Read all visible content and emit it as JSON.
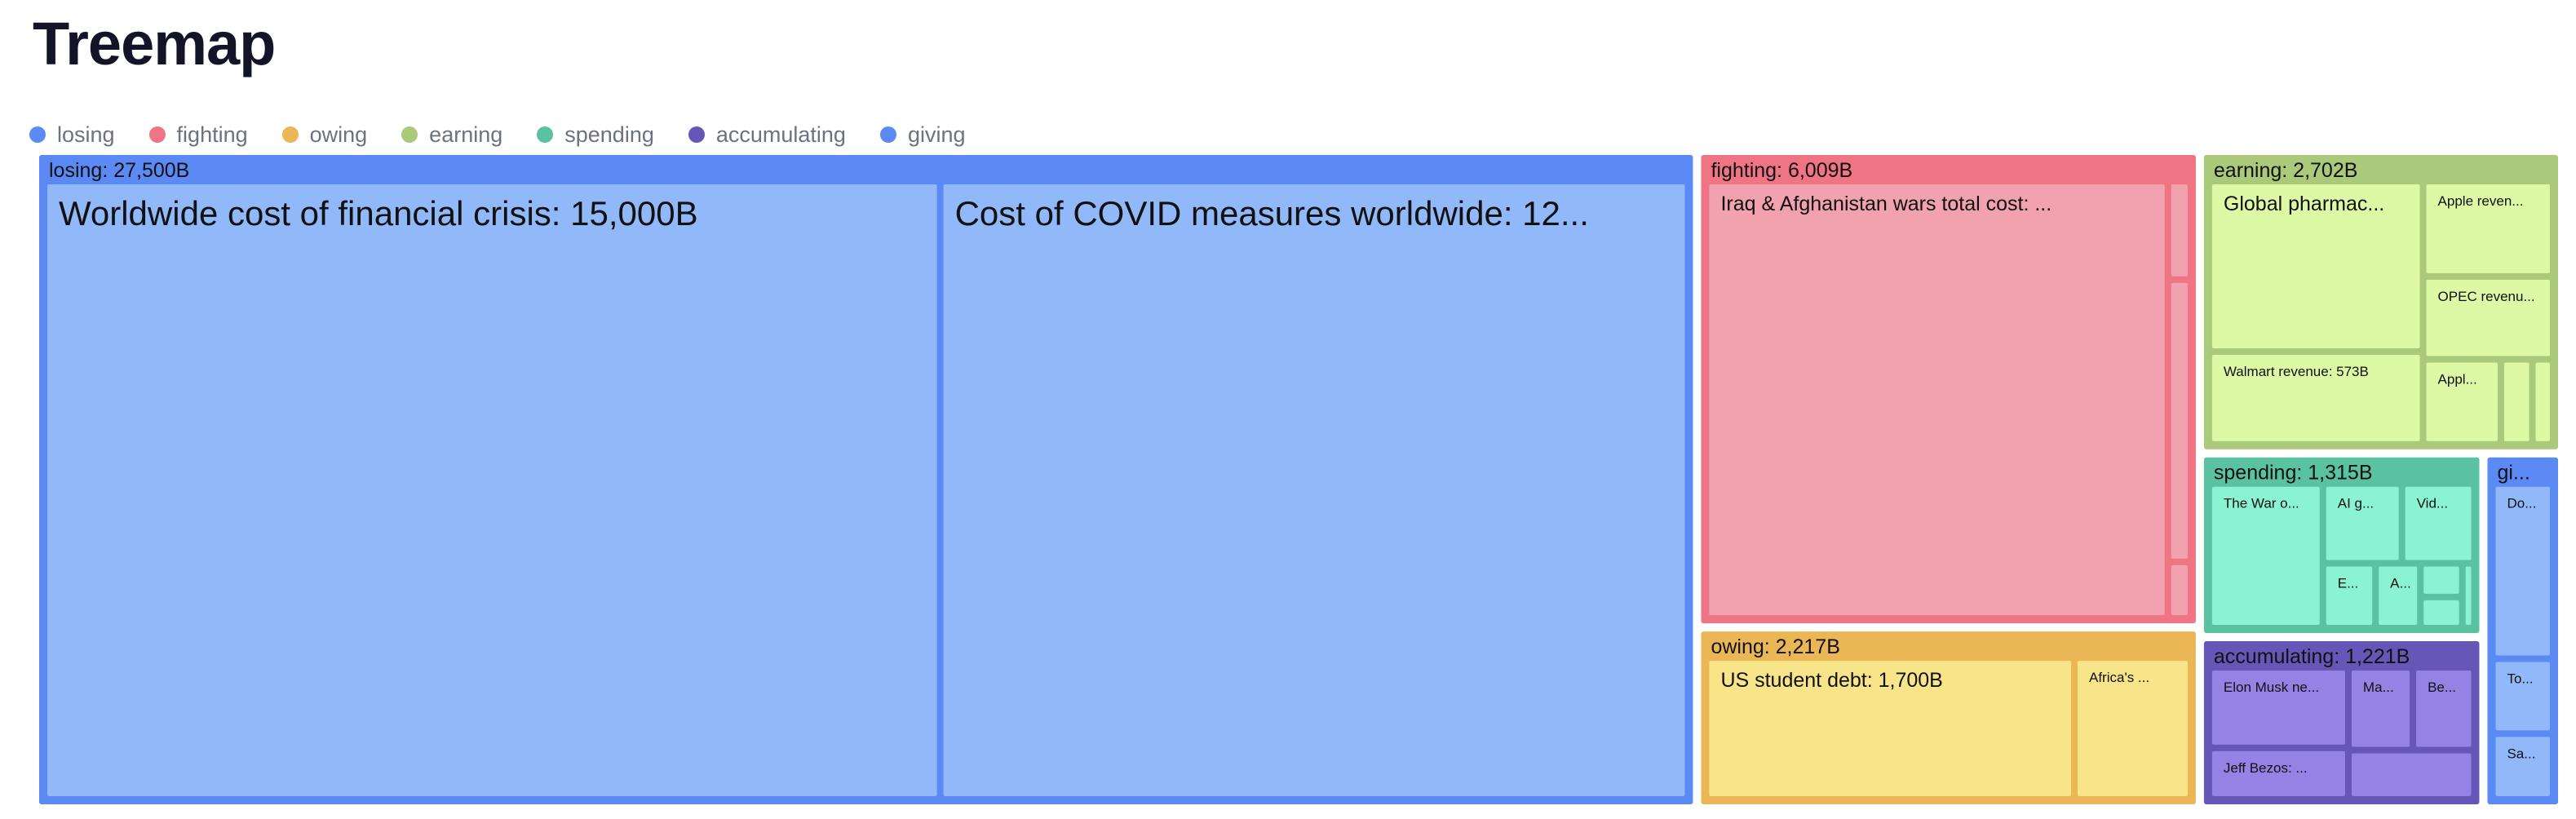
{
  "page": {
    "title": "Treemap"
  },
  "legend": [
    {
      "label": "losing",
      "color": "#5b8af5"
    },
    {
      "label": "fighting",
      "color": "#ef7585"
    },
    {
      "label": "owing",
      "color": "#ebb756"
    },
    {
      "label": "earning",
      "color": "#aac97a"
    },
    {
      "label": "spending",
      "color": "#5ac2a0"
    },
    {
      "label": "accumulating",
      "color": "#6656b8"
    },
    {
      "label": "giving",
      "color": "#5b8af5"
    }
  ],
  "chart_data": {
    "type": "treemap",
    "unit": "B",
    "groups": [
      {
        "name": "losing",
        "header": "losing: 27,500B",
        "value": 27500,
        "color": "#5b8af5",
        "leafColor": "#91b8f8",
        "children": [
          {
            "label": "Worldwide cost of financial crisis: 15,000B",
            "value": 15000
          },
          {
            "label": "Cost of COVID measures worldwide: 12,...",
            "value": 12500
          }
        ]
      },
      {
        "name": "fighting",
        "header": "fighting: 6,009B",
        "value": 6009,
        "color": "#ef7585",
        "leafColor": "#f2a2ae",
        "children": [
          {
            "label": "Iraq & Afghanistan wars total cost: 5,800B",
            "value": 5800
          },
          {
            "label": "",
            "value": 46
          },
          {
            "label": "",
            "value": 138
          },
          {
            "label": "",
            "value": 25
          }
        ]
      },
      {
        "name": "owing",
        "header": "owing: 2,217B",
        "value": 2217,
        "color": "#ebb756",
        "leafColor": "#f9e589",
        "children": [
          {
            "label": "US student debt: 1,700B",
            "value": 1700
          },
          {
            "label": "Africa's fore...",
            "value": 517
          }
        ]
      },
      {
        "name": "earning",
        "header": "earning: 2,702B",
        "value": 2702,
        "color": "#aac97a",
        "leafColor": "#ddf9a6",
        "children": [
          {
            "label": "Global pharmaceutical market:...",
            "value": 1090
          },
          {
            "label": "Walmart revenue: 573B",
            "value": 573
          },
          {
            "label": "Apple revenu...",
            "value": 365
          },
          {
            "label": "OPEC revenue...",
            "value": 314
          },
          {
            "label": "Apple n...",
            "value": 200
          },
          {
            "label": "",
            "value": 70
          },
          {
            "label": "",
            "value": 40
          }
        ]
      },
      {
        "name": "spending",
        "header": "spending: 1,315B",
        "value": 1315,
        "color": "#5ac2a0",
        "leafColor": "#8af3d2",
        "children": [
          {
            "label": "The War on Drug...",
            "value": 560
          },
          {
            "label": "AI globa...",
            "value": 220
          },
          {
            "label": "Video ...",
            "value": 200
          },
          {
            "label": "Ebay...",
            "value": 120
          },
          {
            "label": "Alt...",
            "value": 100
          },
          {
            "label": "",
            "value": 50
          },
          {
            "label": "",
            "value": 45
          },
          {
            "label": "",
            "value": 15
          },
          {
            "label": "",
            "value": 5
          }
        ]
      },
      {
        "name": "accumulating",
        "header": "accumulating: 1,221B",
        "value": 1221,
        "color": "#6656b8",
        "leafColor": "#9483e4",
        "children": [
          {
            "label": "Elon Musk net wort...",
            "value": 400
          },
          {
            "label": "Jeff Bezos: 243B",
            "value": 243
          },
          {
            "label": "Mark Z...",
            "value": 190
          },
          {
            "label": "Bern...",
            "value": 180
          },
          {
            "label": "",
            "value": 208
          }
        ]
      },
      {
        "name": "giving",
        "header": "givin...",
        "value": 650,
        "color": "#5b8af5",
        "leafColor": "#91b8f8",
        "children": [
          {
            "label": "Donat...",
            "value": 370
          },
          {
            "label": "Total...",
            "value": 150
          },
          {
            "label": "Save ...",
            "value": 130
          }
        ]
      }
    ]
  }
}
